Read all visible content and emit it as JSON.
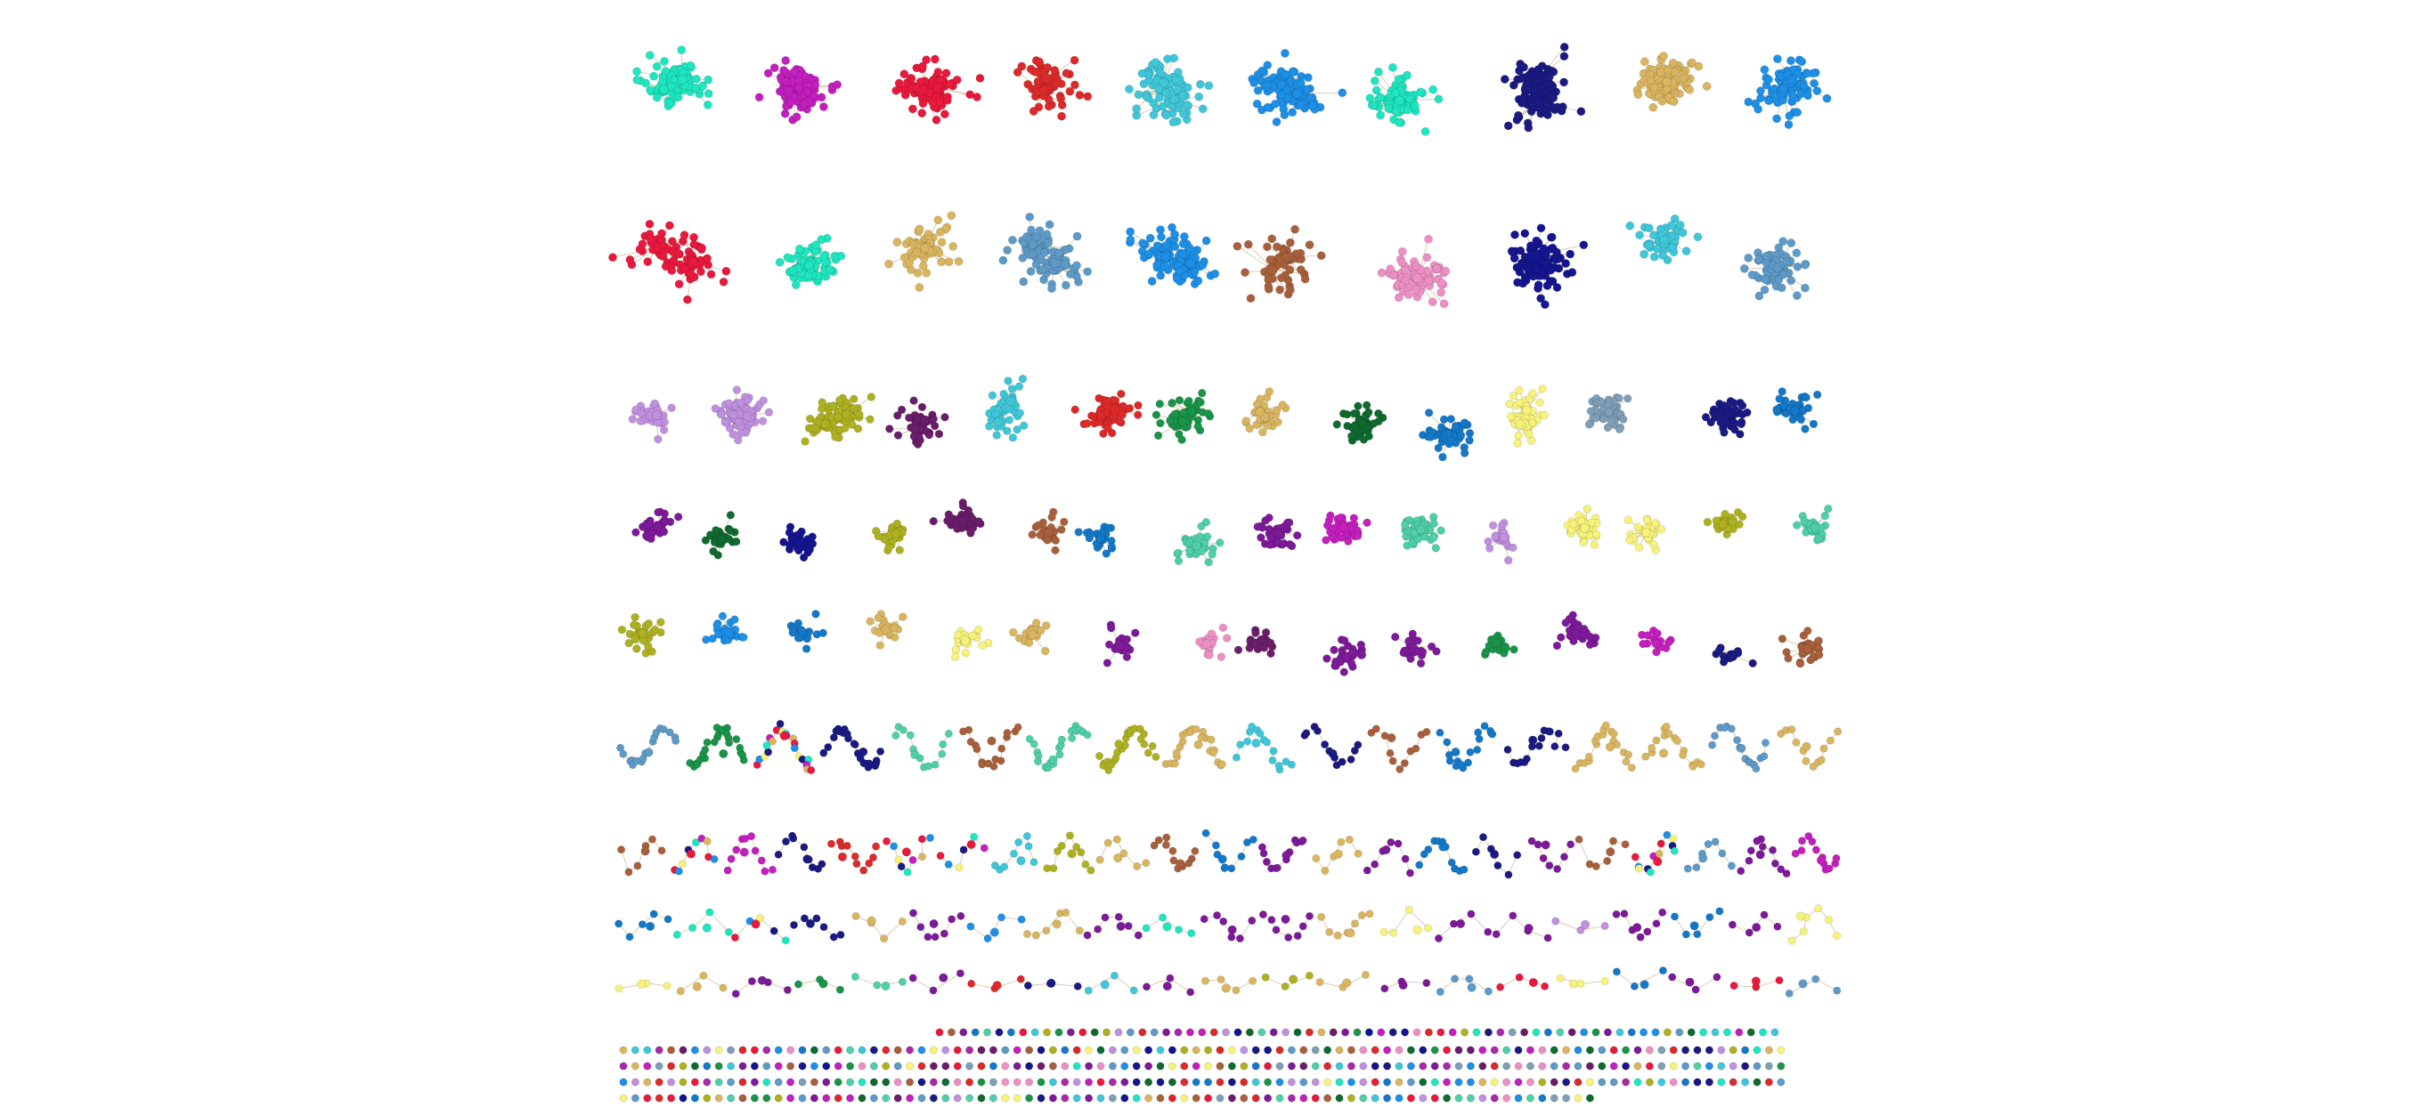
{
  "diagram": {
    "type": "network-components",
    "background": "#ffffff",
    "edge_color": "#c8b48e",
    "palette": {
      "teal_green": "#1ee6c0",
      "magenta": "#c21fbd",
      "purple_magenta": "#a82aa8",
      "crimson": "#e8193c",
      "red": "#dc2a2a",
      "sky": "#3fc6d8",
      "blue": "#1d8fe6",
      "navy": "#1a1a82",
      "dark_navy": "#151590",
      "gold": "#d9b560",
      "steel_blue": "#5e9ac7",
      "brown": "#a8603c",
      "pink": "#ec90c4",
      "lavender": "#c090e0",
      "olive": "#adb120",
      "plum": "#6a1d6a",
      "violet": "#7d1a99",
      "green": "#1a9448",
      "dark_green": "#0f6a30",
      "pale_yellow": "#f6f27a",
      "grey_blue": "#7f9fb8",
      "medium_blue": "#1478c8",
      "mint": "#4ecfa8"
    },
    "rows": [
      {
        "row": 1,
        "components": [
          "teal_green",
          "magenta",
          "crimson",
          "red",
          "sky",
          "blue",
          "teal_green",
          "navy",
          "gold",
          "blue"
        ]
      },
      {
        "row": 2,
        "components": [
          "crimson",
          "teal_green",
          "gold",
          "steel_blue",
          "blue",
          "brown",
          "pink",
          "dark_navy",
          "sky",
          "steel_blue"
        ]
      },
      {
        "row": 3,
        "components": [
          "lavender",
          "lavender",
          "olive",
          "plum",
          "sky",
          "red",
          "green",
          "gold",
          "dark_green",
          "medium_blue",
          "pale_yellow",
          "grey_blue",
          "navy",
          "medium_blue"
        ]
      },
      {
        "row": 4,
        "components": [
          "violet",
          "dark_green",
          "dark_navy",
          "olive",
          "plum",
          "brown",
          "medium_blue",
          "mint",
          "violet",
          "magenta",
          "mint",
          "lavender",
          "pale_yellow",
          "pale_yellow",
          "olive",
          "mint"
        ]
      },
      {
        "row": 5,
        "components": [
          "olive",
          "blue",
          "medium_blue",
          "gold",
          "pale_yellow",
          "gold",
          "violet",
          "pink",
          "plum",
          "violet",
          "violet",
          "green",
          "violet",
          "magenta",
          "navy",
          "brown"
        ]
      },
      {
        "row": 6,
        "components": [
          "steel_blue",
          "green",
          "mixed",
          "navy",
          "mint",
          "brown",
          "mint",
          "olive",
          "gold",
          "sky",
          "navy",
          "brown",
          "medium_blue",
          "navy",
          "gold",
          "gold",
          "steel_blue",
          "gold"
        ]
      },
      {
        "row": 7,
        "components": [
          "brown",
          "mixed",
          "magenta",
          "navy",
          "red",
          "mixed",
          "mixed",
          "sky",
          "olive",
          "gold",
          "brown",
          "medium_blue",
          "violet",
          "gold",
          "violet",
          "medium_blue",
          "navy",
          "violet",
          "brown",
          "mixed",
          "steel_blue",
          "violet",
          "magenta"
        ]
      },
      {
        "row": 8,
        "components": [
          "medium_blue",
          "teal_green",
          "mixed",
          "navy",
          "gold",
          "violet",
          "blue",
          "gold",
          "violet",
          "teal_green",
          "violet",
          "violet",
          "gold",
          "pale_yellow",
          "violet",
          "violet",
          "lavender",
          "violet",
          "medium_blue",
          "violet",
          "pale_yellow"
        ]
      },
      {
        "row": 9,
        "components": [
          "pale_yellow",
          "gold",
          "violet",
          "green",
          "mint",
          "violet",
          "red",
          "navy",
          "sky",
          "violet",
          "gold",
          "olive",
          "gold",
          "violet",
          "steel_blue",
          "crimson",
          "pale_yellow",
          "medium_blue",
          "violet",
          "crimson",
          "steel_blue"
        ]
      },
      {
        "row": 10,
        "components": [
          "isolated-node-grid"
        ]
      }
    ]
  }
}
